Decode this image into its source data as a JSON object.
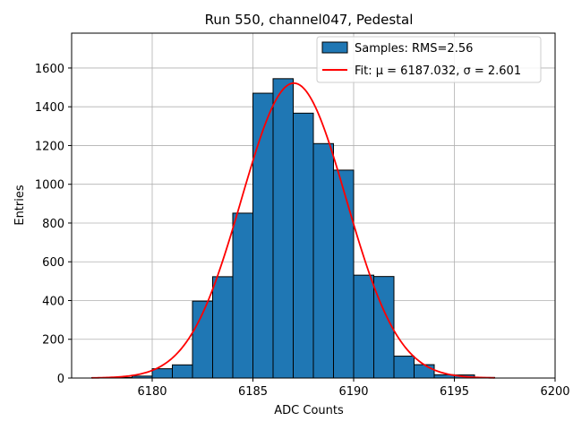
{
  "chart_data": {
    "type": "bar",
    "title": "Run 550, channel047, Pedestal",
    "xlabel": "ADC Counts",
    "ylabel": "Entries",
    "xlim": [
      6176,
      6200
    ],
    "ylim": [
      0,
      1780
    ],
    "xticks": [
      6180,
      6185,
      6190,
      6195,
      6200
    ],
    "yticks": [
      0,
      200,
      400,
      600,
      800,
      1000,
      1200,
      1400,
      1600
    ],
    "grid": true,
    "legend_position": "top-right",
    "bin_edges": [
      6177,
      6178,
      6179,
      6180,
      6181,
      6182,
      6183,
      6184,
      6185,
      6186,
      6187,
      6188,
      6189,
      6190,
      6191,
      6192,
      6193,
      6194,
      6195,
      6196,
      6197,
      6198,
      6199
    ],
    "series": [
      {
        "name": "Samples: RMS=2.56",
        "kind": "histogram",
        "color": "#1f77b4",
        "edgecolor": "#000000",
        "values": [
          2,
          3,
          10,
          48,
          68,
          397,
          523,
          851,
          1470,
          1545,
          1367,
          1210,
          1073,
          531,
          524,
          113,
          69,
          17,
          16,
          3,
          0,
          0
        ]
      },
      {
        "name": "Fit: μ = 6187.032, σ = 2.601",
        "kind": "gaussian_fit",
        "color": "#ff0000",
        "mu": 6187.032,
        "sigma": 2.601,
        "amplitude": 1522,
        "x_range": [
          6177,
          6197
        ]
      }
    ]
  }
}
